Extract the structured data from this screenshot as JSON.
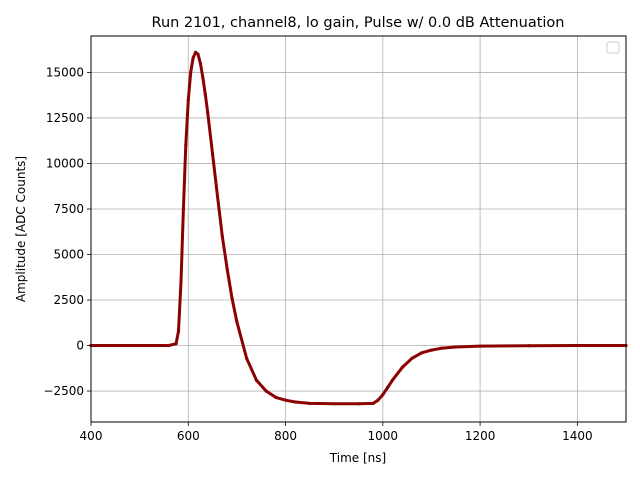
{
  "chart_data": {
    "type": "scatter",
    "title": "Run 2101, channel8, lo gain, Pulse w/ 0.0 dB Attenuation",
    "xlabel": "Time [ns]",
    "ylabel": "Amplitude [ADC Counts]",
    "xlim": [
      400,
      1500
    ],
    "ylim": [
      -4200,
      17000
    ],
    "xticks": [
      400,
      600,
      800,
      1000,
      1200,
      1400
    ],
    "yticks": [
      -2500,
      0,
      2500,
      5000,
      7500,
      10000,
      12500,
      15000
    ],
    "ytick_labels": [
      "−2500",
      "0",
      "2500",
      "5000",
      "7500",
      "10000",
      "12500",
      "15000"
    ],
    "grid": true,
    "legend": "top-right (empty)",
    "series": [
      {
        "color": "#8b0000",
        "x": [
          400,
          560,
          575,
          580,
          585,
          590,
          595,
          600,
          605,
          610,
          615,
          620,
          625,
          630,
          635,
          640,
          650,
          660,
          670,
          680,
          690,
          700,
          720,
          740,
          760,
          780,
          800,
          820,
          850,
          900,
          950,
          980,
          990,
          1000,
          1010,
          1020,
          1040,
          1060,
          1080,
          1100,
          1120,
          1150,
          1200,
          1300,
          1400,
          1500
        ],
        "y": [
          0,
          0,
          100,
          800,
          3500,
          7500,
          11000,
          13500,
          15000,
          15800,
          16100,
          16000,
          15500,
          14700,
          13800,
          12800,
          10500,
          8200,
          6000,
          4200,
          2600,
          1300,
          -700,
          -1900,
          -2500,
          -2850,
          -3000,
          -3100,
          -3180,
          -3200,
          -3200,
          -3180,
          -3000,
          -2700,
          -2300,
          -1900,
          -1200,
          -700,
          -400,
          -250,
          -150,
          -80,
          -30,
          -10,
          0,
          0
        ]
      }
    ]
  }
}
